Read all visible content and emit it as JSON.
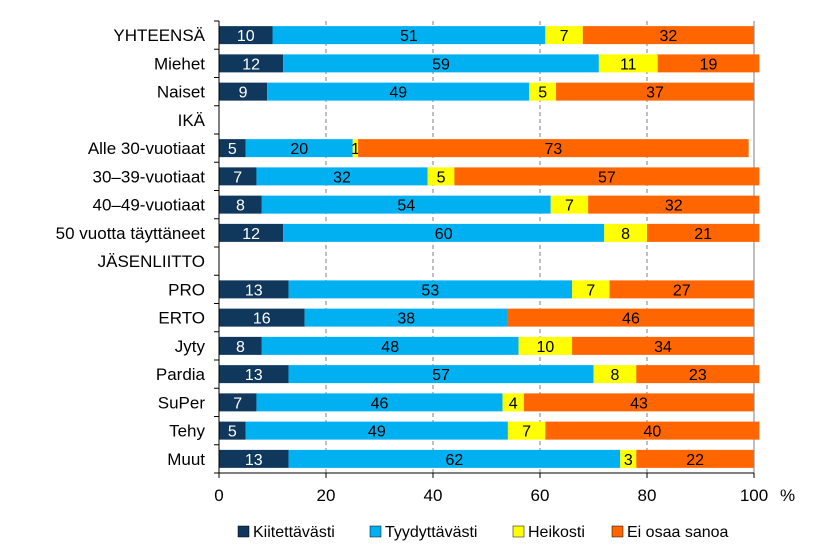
{
  "chart_data": {
    "type": "bar",
    "orientation": "horizontal",
    "stacked": true,
    "categories": [
      "YHTEENSÄ",
      "Miehet",
      "Naiset",
      "IKÄ",
      "Alle 30-vuotiaat",
      "30–39-vuotiaat",
      "40–49-vuotiaat",
      "50 vuotta täyttäneet",
      "JÄSENLIITTO",
      "PRO",
      "ERTO",
      "Jyty",
      "Pardia",
      "SuPer",
      "Tehy",
      "Muut"
    ],
    "series": [
      {
        "name": "Kiitettävästi",
        "color": "#10375c",
        "label_color": "#ffffff",
        "values": [
          10,
          12,
          9,
          null,
          5,
          7,
          8,
          12,
          null,
          13,
          16,
          8,
          13,
          7,
          5,
          13
        ]
      },
      {
        "name": "Tyydyttävästi",
        "color": "#00b0f0",
        "label_color": "#000000",
        "values": [
          51,
          59,
          49,
          null,
          20,
          32,
          54,
          60,
          null,
          53,
          38,
          48,
          57,
          46,
          49,
          62
        ]
      },
      {
        "name": "Heikosti",
        "color": "#ffff00",
        "label_color": "#000000",
        "values": [
          7,
          11,
          5,
          null,
          1,
          5,
          7,
          8,
          null,
          7,
          0,
          10,
          8,
          4,
          7,
          3
        ]
      },
      {
        "name": "Ei osaa sanoa",
        "color": "#ff6600",
        "label_color": "#000000",
        "values": [
          32,
          19,
          37,
          null,
          73,
          57,
          32,
          21,
          null,
          27,
          46,
          34,
          23,
          43,
          40,
          22
        ]
      }
    ],
    "xlim": [
      0,
      100
    ],
    "xticks": [
      0,
      20,
      40,
      60,
      80,
      100
    ],
    "x_unit": "%",
    "grid": "vertical dashed",
    "legend_position": "bottom",
    "title": "",
    "xlabel": "",
    "ylabel": ""
  }
}
